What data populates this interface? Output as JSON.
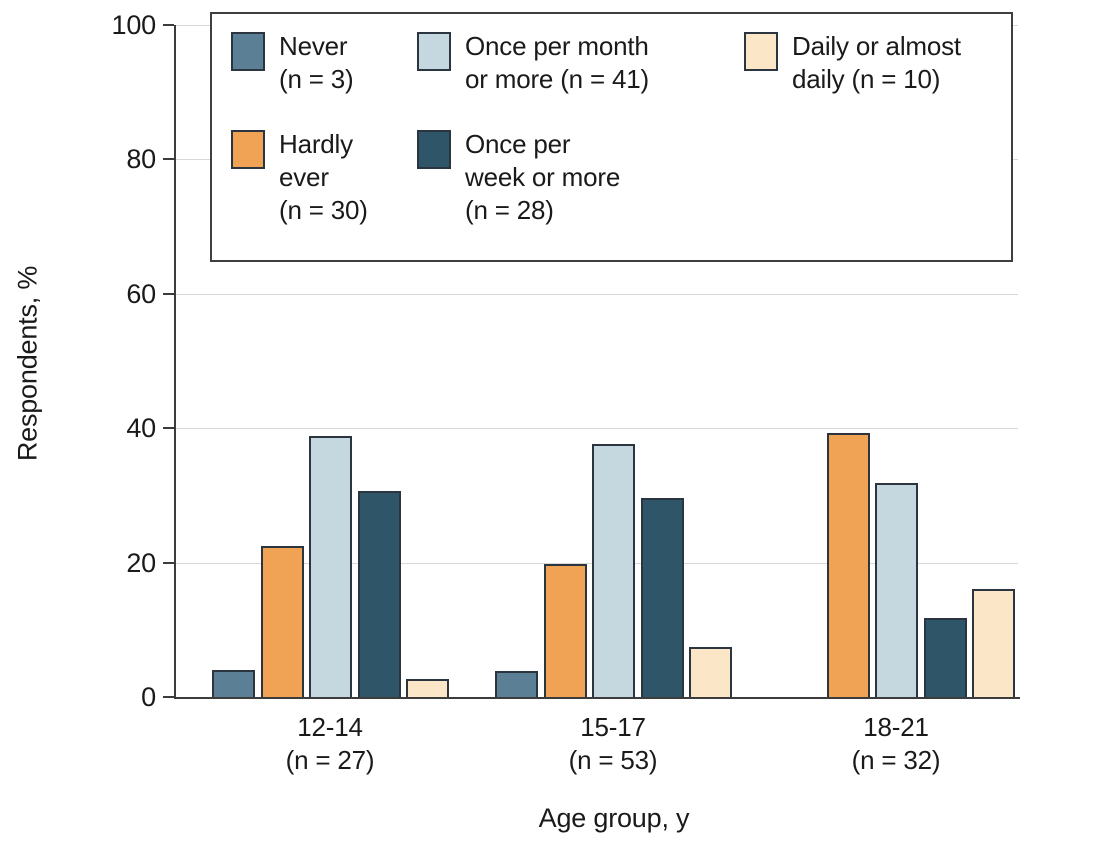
{
  "chart_data": {
    "type": "bar",
    "title": "",
    "ylabel": "Respondents, %",
    "xlabel": "Age group, y",
    "ylim": [
      0,
      100
    ],
    "yticks": [
      0,
      20,
      40,
      60,
      80,
      100
    ],
    "grid": true,
    "legend_position": "top-inside",
    "categories": [
      "12-14 (n = 27)",
      "15-17 (n = 53)",
      "18-21 (n = 32)"
    ],
    "category_lines": [
      [
        "12-14",
        "(n = 27)"
      ],
      [
        "15-17",
        "(n = 53)"
      ],
      [
        "18-21",
        "(n = 32)"
      ]
    ],
    "series": [
      {
        "key": "never",
        "name": "Never (n = 3)",
        "legend_lines": [
          "Never",
          "(n = 3)"
        ],
        "color": "#5b8096",
        "values": [
          4.0,
          3.8,
          0
        ]
      },
      {
        "key": "hardly-ever",
        "name": "Hardly ever (n = 30)",
        "legend_lines": [
          "Hardly",
          "ever",
          "(n = 30)"
        ],
        "color": "#f0a355",
        "values": [
          22.4,
          19.8,
          39.3
        ]
      },
      {
        "key": "once-per-month-or-more",
        "name": "Once per month or more (n = 41)",
        "legend_lines": [
          "Once per month",
          "or more (n = 41)"
        ],
        "color": "#c5d8e0",
        "values": [
          38.9,
          37.7,
          31.9
        ]
      },
      {
        "key": "once-per-week-or-more",
        "name": "Once per week or more (n = 28)",
        "legend_lines": [
          "Once per",
          "week or more",
          "(n = 28)"
        ],
        "color": "#2f5568",
        "values": [
          30.6,
          29.6,
          11.8
        ]
      },
      {
        "key": "daily-or-almost-daily",
        "name": "Daily or almost daily (n = 10)",
        "legend_lines": [
          "Daily or almost",
          "daily (n = 10)"
        ],
        "color": "#fce6c8",
        "values": [
          2.7,
          7.5,
          16.0
        ]
      }
    ],
    "colors": {
      "axis": "#3c3c3c",
      "grid": "#d8d8d8",
      "bar_border": "#2a3540",
      "text": "#1a1a1a"
    }
  }
}
